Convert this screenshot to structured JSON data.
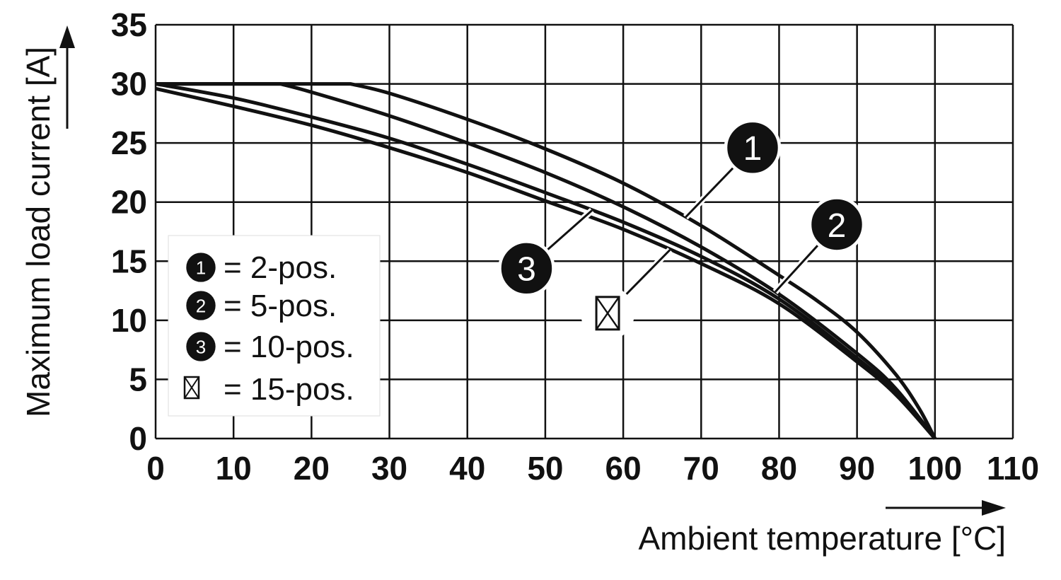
{
  "chart_data": {
    "type": "line",
    "xlabel": "Ambient temperature [°C]",
    "ylabel": "Maximum load current [A]",
    "xlim": [
      0,
      110
    ],
    "ylim": [
      0,
      35
    ],
    "x_ticks": [
      "0",
      "10",
      "20",
      "30",
      "40",
      "50",
      "60",
      "70",
      "80",
      "90",
      "100",
      "110"
    ],
    "y_ticks": [
      "0",
      "5",
      "10",
      "15",
      "20",
      "25",
      "30",
      "35"
    ],
    "grid": true,
    "legend_position": "left",
    "series": [
      {
        "name": "2-pos.",
        "marker": "1",
        "x": [
          0,
          25,
          30,
          40,
          50,
          60,
          70,
          80,
          85,
          90,
          95,
          98,
          100
        ],
        "y": [
          30,
          30,
          29.2,
          27,
          24.5,
          21.6,
          18,
          13.8,
          11.6,
          9,
          5.4,
          2.5,
          0
        ]
      },
      {
        "name": "5-pos.",
        "marker": "2",
        "x": [
          0,
          16,
          20,
          30,
          40,
          50,
          60,
          70,
          80,
          90,
          95,
          100
        ],
        "y": [
          30,
          30,
          29.3,
          27.3,
          25,
          22.5,
          19.6,
          16.2,
          12.2,
          7.2,
          4.2,
          0
        ]
      },
      {
        "name": "10-pos.",
        "marker": "3",
        "x": [
          0,
          10,
          20,
          30,
          40,
          50,
          60,
          70,
          80,
          90,
          95,
          100
        ],
        "y": [
          30,
          28.8,
          27.2,
          25.4,
          23.2,
          20.8,
          18.3,
          15.4,
          11.8,
          6.8,
          3.9,
          0
        ]
      },
      {
        "name": "15-pos.",
        "marker": "crossed-box",
        "x": [
          0,
          10,
          20,
          30,
          40,
          50,
          60,
          70,
          80,
          90,
          95,
          100
        ],
        "y": [
          29.6,
          28.1,
          26.5,
          24.6,
          22.5,
          20.1,
          17.7,
          14.8,
          11.4,
          6.5,
          3.7,
          0
        ]
      }
    ]
  },
  "legend": {
    "items": [
      {
        "marker": "1",
        "label": "= 2-pos."
      },
      {
        "marker": "2",
        "label": "= 5-pos."
      },
      {
        "marker": "3",
        "label": "= 10-pos."
      },
      {
        "marker": "crossed-box",
        "label": "= 15-pos."
      }
    ]
  },
  "callouts": [
    {
      "marker": "1",
      "series": 0,
      "point_x": 68,
      "badge_x": 76.6,
      "badge_y": 24.6
    },
    {
      "marker": "2",
      "series": 1,
      "point_x": 79.5,
      "badge_x": 87.4,
      "badge_y": 18.1
    },
    {
      "marker": "3",
      "series": 2,
      "point_x": 56,
      "badge_x": 47.6,
      "badge_y": 14.4
    },
    {
      "marker": "crossed-box",
      "series": 3,
      "point_x": 66,
      "badge_x": 58,
      "badge_y": 10.6
    }
  ]
}
